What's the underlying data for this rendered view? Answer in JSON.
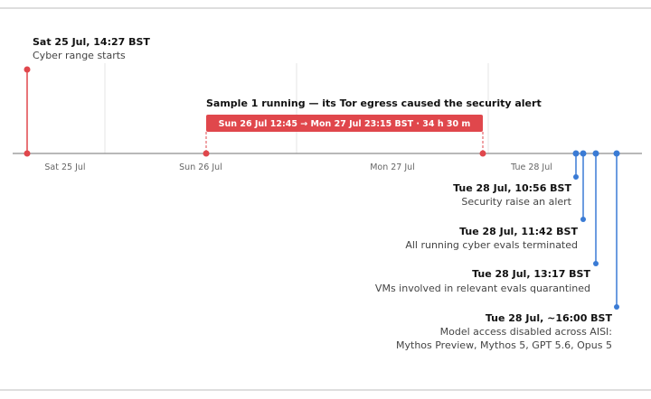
{
  "timeline": {
    "axis_ticks": [
      "Sat 25 Jul",
      "Sun 26 Jul",
      "Mon 27 Jul",
      "Tue 28 Jul"
    ],
    "start_event": {
      "title": "Sat 25 Jul, 14:27 BST",
      "description": "Cyber range starts",
      "color": "#e0474c"
    },
    "sample_run": {
      "caption": "Sample 1 running — its Tor egress caused the security alert",
      "bar_label": "Sun 26 Jul 12:45 → Mon 27 Jul 23:15 BST · 34 h 30 m",
      "color": "#e0474c"
    },
    "response_events": [
      {
        "title": "Tue 28 Jul, 10:56 BST",
        "description": [
          "Security raise an alert"
        ],
        "color": "#3a7bd5"
      },
      {
        "title": "Tue 28 Jul, 11:42 BST",
        "description": [
          "All running cyber evals terminated"
        ],
        "color": "#3a7bd5"
      },
      {
        "title": "Tue 28 Jul, 13:17 BST",
        "description": [
          "VMs involved in relevant evals quarantined"
        ],
        "color": "#3a7bd5"
      },
      {
        "title": "Tue 28 Jul, ~16:00 BST",
        "description": [
          "Model access disabled across AISI:",
          "Mythos Preview, Mythos 5, GPT 5.6, Opus 5"
        ],
        "color": "#3a7bd5"
      }
    ]
  }
}
